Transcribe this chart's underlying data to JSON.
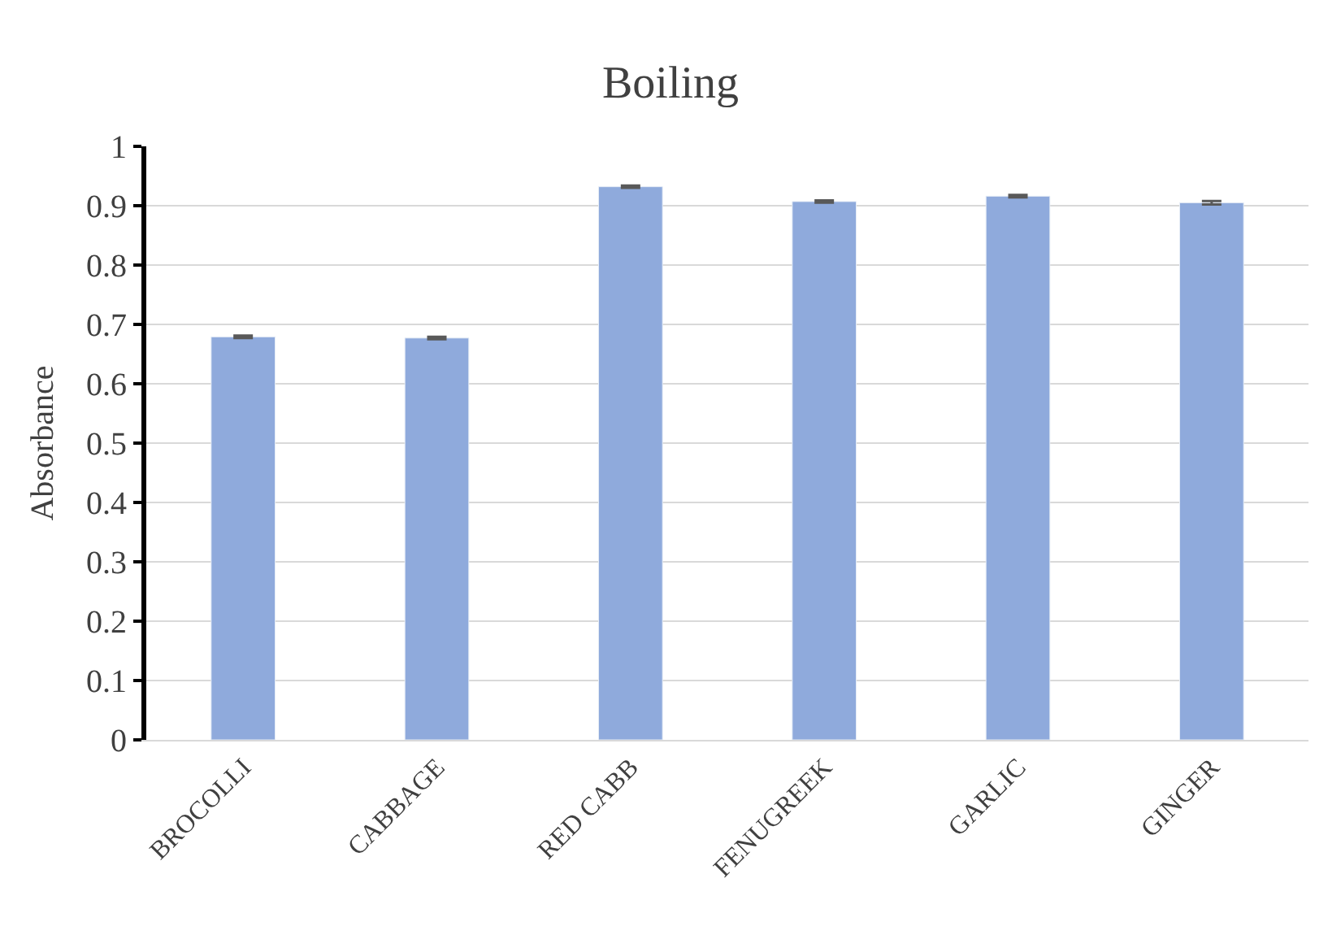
{
  "chart_data": {
    "type": "bar",
    "title": "Boiling",
    "ylabel": "Absorbance",
    "categories": [
      "BROCOLLI",
      "CABBAGE",
      "RED CABB",
      "FENUGREEK",
      "GARLIC",
      "GINGER"
    ],
    "values": [
      0.679,
      0.677,
      0.932,
      0.907,
      0.916,
      0.905
    ],
    "errors": [
      0.002,
      0.002,
      0.002,
      0.002,
      0.002,
      0.003
    ],
    "color": "#8faadc",
    "ylim": [
      0,
      1
    ],
    "yticks": [
      0,
      0.1,
      0.2,
      0.3,
      0.4,
      0.5,
      0.6,
      0.7,
      0.8,
      0.9,
      1
    ],
    "grid": "y"
  }
}
